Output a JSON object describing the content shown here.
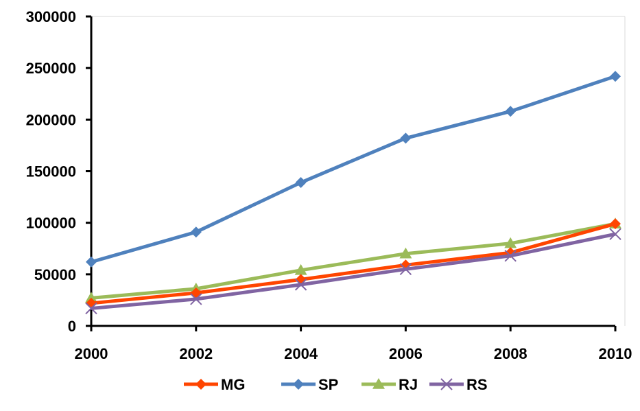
{
  "chart_data": {
    "type": "line",
    "x": [
      2000,
      2002,
      2004,
      2006,
      2008,
      2010
    ],
    "xlim": [
      2000,
      2010
    ],
    "ylim": [
      0,
      300000
    ],
    "yticks": [
      "0",
      "50000",
      "100000",
      "150000",
      "200000",
      "250000",
      "300000"
    ],
    "xticks": [
      "2000",
      "2002",
      "2004",
      "2006",
      "2008",
      "2010"
    ],
    "grid": false,
    "legend_position": "bottom",
    "series": [
      {
        "name": "MG",
        "color": "#FF4500",
        "marker": "diamond",
        "values": [
          22000,
          32000,
          45000,
          59000,
          71000,
          99000
        ]
      },
      {
        "name": "SP",
        "color": "#4F81BD",
        "marker": "diamond",
        "values": [
          62000,
          91000,
          139000,
          182000,
          208000,
          242000
        ]
      },
      {
        "name": "RJ",
        "color": "#9BBB59",
        "marker": "triangle",
        "values": [
          27000,
          36000,
          54000,
          70000,
          80000,
          99000
        ]
      },
      {
        "name": "RS",
        "color": "#8064A2",
        "marker": "x",
        "values": [
          17000,
          26000,
          40000,
          55000,
          68000,
          89000
        ]
      }
    ]
  }
}
